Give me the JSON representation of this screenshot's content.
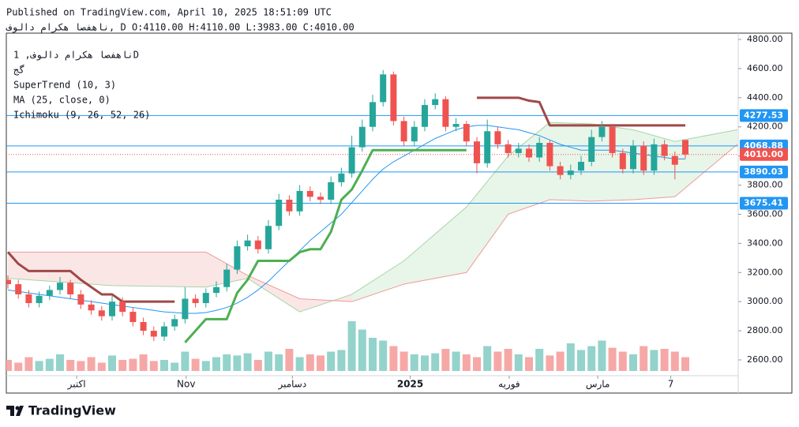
{
  "header": {
    "published": "Published on TradingView.com, April 10, 2025 18:51:09 UTC",
    "line2": "ناهفصا هکرام دالوف, D O:4110.00 H:4110.00 L:3983.00 C:4010.00"
  },
  "legend": {
    "symbol": "ناهفصا هکرام دالوف, 1D",
    "exchange": "گج",
    "supertrend": "SuperTrend (10, 3)",
    "ma": "MA (25, close, 0)",
    "ichimoku": "Ichimoku (9, 26, 52, 26)"
  },
  "footer": {
    "brand": "TradingView"
  },
  "chart_data": {
    "type": "candlestick",
    "opens": [
      3150,
      3120,
      3050,
      2990,
      3040,
      3080,
      3130,
      3050,
      2980,
      2940,
      2900,
      3000,
      2930,
      2860,
      2800,
      2760,
      2830,
      2880,
      3020,
      2990,
      3060,
      3100,
      3220,
      3380,
      3420,
      3360,
      3520,
      3700,
      3620,
      3760,
      3720,
      3700,
      3820,
      3880,
      4060,
      4200,
      4370,
      4560,
      4240,
      4100,
      4200,
      4350,
      4390,
      4200,
      4220,
      4100,
      3950,
      4170,
      4080,
      4020,
      4050,
      3990,
      4090,
      3930,
      3870,
      3900,
      3960,
      4130,
      4200,
      4020,
      3910,
      4070,
      3900,
      4080,
      4000,
      4110
    ],
    "highs": [
      3180,
      3150,
      3080,
      3070,
      3110,
      3170,
      3150,
      3080,
      3010,
      2970,
      3040,
      3030,
      2960,
      2890,
      2830,
      2860,
      2910,
      3100,
      3050,
      3090,
      3140,
      3260,
      3420,
      3460,
      3450,
      3560,
      3740,
      3730,
      3800,
      3790,
      3750,
      3860,
      3920,
      4140,
      4250,
      4420,
      4590,
      4580,
      4270,
      4240,
      4390,
      4430,
      4410,
      4260,
      4240,
      4130,
      4250,
      4200,
      4110,
      4090,
      4080,
      4130,
      4110,
      3960,
      3940,
      4000,
      4180,
      4240,
      4220,
      4050,
      4110,
      4100,
      4120,
      4110,
      4030,
      4110
    ],
    "lows": [
      3090,
      3020,
      2960,
      2960,
      3010,
      3050,
      3020,
      2950,
      2910,
      2870,
      2870,
      2900,
      2830,
      2770,
      2730,
      2730,
      2800,
      2850,
      2960,
      2960,
      3030,
      3070,
      3190,
      3350,
      3330,
      3330,
      3490,
      3590,
      3590,
      3690,
      3670,
      3670,
      3790,
      3850,
      4030,
      4170,
      4340,
      4210,
      4070,
      4070,
      4170,
      4320,
      4170,
      4170,
      4070,
      3880,
      3920,
      4050,
      3990,
      3990,
      3960,
      3960,
      3900,
      3840,
      3840,
      3870,
      3930,
      4100,
      3990,
      3880,
      3880,
      3870,
      3870,
      3970,
      3840,
      3983
    ],
    "closes": [
      3120,
      3050,
      2990,
      3040,
      3080,
      3130,
      3050,
      2980,
      2940,
      2900,
      3000,
      2930,
      2860,
      2800,
      2760,
      2830,
      2880,
      3020,
      2990,
      3060,
      3100,
      3220,
      3380,
      3420,
      3360,
      3520,
      3700,
      3620,
      3760,
      3720,
      3700,
      3820,
      3880,
      4060,
      4200,
      4370,
      4560,
      4240,
      4100,
      4200,
      4350,
      4390,
      4200,
      4220,
      4100,
      3950,
      4170,
      4080,
      4020,
      4050,
      3990,
      4090,
      3930,
      3870,
      3900,
      3960,
      4130,
      4200,
      4020,
      3910,
      4070,
      3900,
      4080,
      4000,
      3940,
      4010
    ],
    "volumes": [
      20,
      15,
      25,
      18,
      22,
      30,
      20,
      18,
      25,
      15,
      28,
      20,
      22,
      30,
      18,
      20,
      15,
      35,
      22,
      18,
      25,
      30,
      28,
      32,
      20,
      35,
      30,
      40,
      25,
      30,
      28,
      35,
      38,
      90,
      75,
      60,
      55,
      45,
      35,
      30,
      28,
      32,
      40,
      35,
      30,
      25,
      45,
      35,
      40,
      30,
      25,
      40,
      28,
      35,
      50,
      38,
      45,
      55,
      42,
      35,
      30,
      45,
      38,
      40,
      35,
      25
    ],
    "supertrend_up": [
      null,
      null,
      null,
      null,
      null,
      null,
      null,
      null,
      null,
      null,
      null,
      null,
      null,
      null,
      null,
      null,
      null,
      2720,
      2800,
      2880,
      2880,
      2880,
      3060,
      3150,
      3280,
      3280,
      3280,
      3280,
      3340,
      3360,
      3360,
      3480,
      3700,
      3770,
      3900,
      4040,
      4040,
      4040,
      4040,
      4040,
      4040,
      4040,
      4040,
      4040,
      4040,
      null,
      null,
      null,
      null,
      null,
      null,
      null,
      null,
      null,
      null,
      null,
      null,
      null,
      null,
      null,
      null,
      null,
      null,
      null,
      null,
      null
    ],
    "supertrend_down": [
      3340,
      3260,
      3210,
      3210,
      3210,
      3210,
      3210,
      3150,
      3100,
      3050,
      3050,
      3000,
      3000,
      3000,
      3000,
      3000,
      3000,
      null,
      null,
      null,
      null,
      null,
      null,
      null,
      null,
      null,
      null,
      null,
      null,
      null,
      null,
      null,
      null,
      null,
      null,
      null,
      null,
      null,
      null,
      null,
      null,
      null,
      null,
      null,
      null,
      4400,
      4400,
      4400,
      4400,
      4400,
      4380,
      4370,
      4210,
      4210,
      4210,
      4210,
      4210,
      4210,
      4210,
      4210,
      4210,
      4210,
      4210,
      4210,
      4210,
      4210
    ],
    "ma": [
      3080,
      3070,
      3060,
      3050,
      3040,
      3030,
      3020,
      3010,
      3000,
      2990,
      2980,
      2970,
      2960,
      2950,
      2940,
      2930,
      2925,
      2920,
      2920,
      2925,
      2940,
      2960,
      2990,
      3030,
      3080,
      3140,
      3210,
      3280,
      3350,
      3420,
      3480,
      3540,
      3600,
      3680,
      3760,
      3840,
      3910,
      3960,
      4000,
      4040,
      4080,
      4120,
      4150,
      4180,
      4200,
      4210,
      4210,
      4200,
      4190,
      4180,
      4160,
      4140,
      4110,
      4080,
      4060,
      4040,
      4040,
      4040,
      4040,
      4030,
      4020,
      4010,
      4000,
      3990,
      3980,
      3980
    ],
    "ichimoku": {
      "x": [
        0,
        10,
        19,
        23,
        28,
        33,
        38,
        44,
        48,
        52,
        56,
        60,
        64,
        70
      ],
      "span_a": [
        3160,
        3110,
        3100,
        3160,
        2930,
        3050,
        3280,
        3650,
        4000,
        4230,
        4220,
        4180,
        4100,
        4180
      ],
      "span_b": [
        3340,
        3340,
        3340,
        3180,
        3020,
        3000,
        3120,
        3200,
        3600,
        3700,
        3690,
        3700,
        3720,
        4080
      ]
    },
    "colors": {
      "up": "#26a69a",
      "down": "#ef5350",
      "volume_up": "#93d3cb",
      "volume_down": "#f6a8a6",
      "supertrend_up": "#4caf50",
      "supertrend_down": "#a04848",
      "ma": "#2196f3",
      "span_a": "#a5d6a7",
      "span_b": "#ef9a9a",
      "cloud_up": "rgba(165,214,167,0.25)",
      "cloud_down": "rgba(239,154,154,0.25)",
      "price_line": "#2196f3"
    },
    "price_lines": [
      4277.53,
      4068.88,
      {
        "value": 4010,
        "label": "4010.00",
        "current": true
      },
      3890.03,
      3675.41
    ],
    "ylim": [
      2600,
      4800
    ],
    "yticks": [
      {
        "value": 2600,
        "label": "2600.00"
      },
      {
        "value": 2800,
        "label": "2800.00"
      },
      {
        "value": 3000,
        "label": "3000.00"
      },
      {
        "value": 3200,
        "label": "3200.00"
      },
      {
        "value": 3400,
        "label": "3400.00"
      },
      {
        "value": 3600,
        "label": "3600.00"
      },
      {
        "value": 3800,
        "label": "3800.00"
      },
      {
        "value": 4000,
        "label": "4000.00"
      },
      {
        "value": 4200,
        "label": "4200.00"
      },
      {
        "value": 4400,
        "label": "4400.00"
      },
      {
        "value": 4600,
        "label": "4600.00"
      },
      {
        "value": 4800,
        "label": "4800.00"
      }
    ],
    "xticks": [
      {
        "value": 6.6,
        "label": "اكتبر"
      },
      {
        "value": 17.1,
        "label": "Nov"
      },
      {
        "value": 27.3,
        "label": "دسامبر"
      },
      {
        "value": 38.6,
        "label": "2025",
        "bold": true
      },
      {
        "value": 48.1,
        "label": "فوريه"
      },
      {
        "value": 56.6,
        "label": "مارس"
      },
      {
        "value": 63.6,
        "label": "7"
      }
    ],
    "grid": false
  }
}
